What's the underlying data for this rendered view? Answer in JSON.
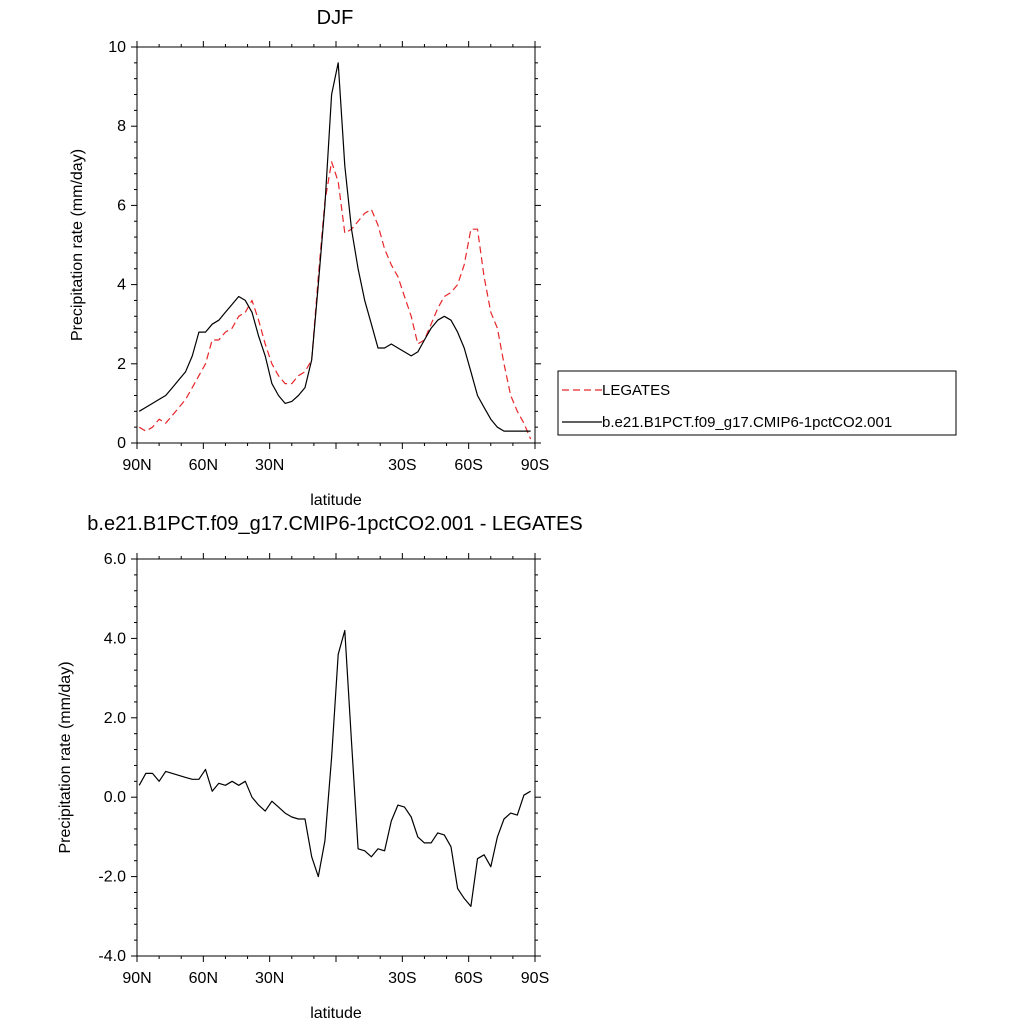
{
  "chart_data": [
    {
      "type": "line",
      "title": "DJF",
      "xlabel": "latitude",
      "ylabel": "Precipitation rate (mm/day)",
      "xlim": [
        90,
        -90
      ],
      "ylim": [
        0,
        10
      ],
      "xticks": [
        90,
        60,
        30,
        0,
        -30,
        -60,
        -90
      ],
      "xtick_labels": [
        "90N",
        "60N",
        "30N",
        "",
        "30S",
        "60S",
        "90S"
      ],
      "yticks": [
        0,
        2,
        4,
        6,
        8,
        10
      ],
      "ytick_labels": [
        "0",
        "2",
        "4",
        "6",
        "8",
        "10"
      ],
      "legend_position": "right",
      "series": [
        {
          "name": "LEGATES",
          "color": "#e8262a",
          "dash": true,
          "x": [
            89,
            86,
            83,
            80,
            77,
            74,
            71,
            68,
            65,
            62,
            59,
            56,
            53,
            50,
            47,
            44,
            41,
            38,
            35,
            32,
            29,
            26,
            23,
            20,
            17,
            14,
            11,
            8,
            5,
            2,
            -1,
            -4,
            -7,
            -10,
            -13,
            -16,
            -19,
            -22,
            -25,
            -28,
            -31,
            -34,
            -37,
            -40,
            -43,
            -46,
            -49,
            -52,
            -55,
            -58,
            -61,
            -64,
            -67,
            -70,
            -73,
            -76,
            -79,
            -82,
            -85,
            -88
          ],
          "y": [
            0.4,
            0.3,
            0.4,
            0.6,
            0.5,
            0.7,
            0.9,
            1.1,
            1.4,
            1.7,
            2.0,
            2.6,
            2.6,
            2.8,
            2.9,
            3.2,
            3.3,
            3.6,
            3.1,
            2.5,
            2.0,
            1.7,
            1.5,
            1.5,
            1.7,
            1.8,
            2.1,
            4.2,
            6.1,
            7.1,
            6.6,
            5.3,
            5.4,
            5.6,
            5.8,
            5.9,
            5.5,
            4.9,
            4.5,
            4.2,
            3.7,
            3.2,
            2.5,
            2.6,
            3.0,
            3.4,
            3.7,
            3.8,
            4.0,
            4.5,
            5.4,
            5.4,
            4.2,
            3.3,
            2.9,
            2.0,
            1.2,
            0.8,
            0.5,
            0.1
          ]
        },
        {
          "name": "b.e21.B1PCT.f09_g17.CMIP6-1pctCO2.001",
          "color": "#000000",
          "dash": false,
          "x": [
            89,
            86,
            83,
            80,
            77,
            74,
            71,
            68,
            65,
            62,
            59,
            56,
            53,
            50,
            47,
            44,
            41,
            38,
            35,
            32,
            29,
            26,
            23,
            20,
            17,
            14,
            11,
            8,
            5,
            2,
            -1,
            -4,
            -7,
            -10,
            -13,
            -16,
            -19,
            -22,
            -25,
            -28,
            -31,
            -34,
            -37,
            -40,
            -43,
            -46,
            -49,
            -52,
            -55,
            -58,
            -61,
            -64,
            -67,
            -70,
            -73,
            -76,
            -79,
            -82,
            -85,
            -88
          ],
          "y": [
            0.8,
            0.9,
            1.0,
            1.1,
            1.2,
            1.4,
            1.6,
            1.8,
            2.2,
            2.8,
            2.8,
            3.0,
            3.1,
            3.3,
            3.5,
            3.7,
            3.6,
            3.3,
            2.7,
            2.2,
            1.5,
            1.2,
            1.0,
            1.05,
            1.2,
            1.4,
            2.1,
            4.0,
            6.0,
            8.8,
            9.6,
            7.0,
            5.4,
            4.4,
            3.6,
            3.0,
            2.4,
            2.4,
            2.5,
            2.4,
            2.3,
            2.2,
            2.3,
            2.6,
            2.9,
            3.1,
            3.2,
            3.1,
            2.8,
            2.4,
            1.8,
            1.2,
            0.9,
            0.6,
            0.4,
            0.3,
            0.3,
            0.3,
            0.3,
            0.3
          ]
        }
      ]
    },
    {
      "type": "line",
      "title": "b.e21.B1PCT.f09_g17.CMIP6-1pctCO2.001 - LEGATES",
      "xlabel": "latitude",
      "ylabel": "Precipitation rate (mm/day)",
      "xlim": [
        90,
        -90
      ],
      "ylim": [
        -4,
        6
      ],
      "xticks": [
        90,
        60,
        30,
        0,
        -30,
        -60,
        -90
      ],
      "xtick_labels": [
        "90N",
        "60N",
        "30N",
        "",
        "30S",
        "60S",
        "90S"
      ],
      "yticks": [
        -4,
        -2,
        0,
        2,
        4,
        6
      ],
      "ytick_labels": [
        "-4.0",
        "-2.0",
        "0.0",
        "2.0",
        "4.0",
        "6.0"
      ],
      "series": [
        {
          "color": "#000000",
          "dash": false,
          "x": [
            89,
            86,
            83,
            80,
            77,
            74,
            71,
            68,
            65,
            62,
            59,
            56,
            53,
            50,
            47,
            44,
            41,
            38,
            35,
            32,
            29,
            26,
            23,
            20,
            17,
            14,
            11,
            8,
            5,
            2,
            -1,
            -4,
            -7,
            -10,
            -13,
            -16,
            -19,
            -22,
            -25,
            -28,
            -31,
            -34,
            -37,
            -40,
            -43,
            -46,
            -49,
            -52,
            -55,
            -58,
            -61,
            -64,
            -67,
            -70,
            -73,
            -76,
            -79,
            -82,
            -85,
            -88
          ],
          "y": [
            0.3,
            0.6,
            0.6,
            0.4,
            0.65,
            0.6,
            0.55,
            0.5,
            0.45,
            0.45,
            0.7,
            0.15,
            0.35,
            0.3,
            0.4,
            0.3,
            0.4,
            0.0,
            -0.2,
            -0.35,
            -0.1,
            -0.25,
            -0.4,
            -0.5,
            -0.55,
            -0.55,
            -1.5,
            -2.0,
            -1.1,
            1.0,
            3.6,
            4.2,
            1.4,
            -1.3,
            -1.35,
            -1.5,
            -1.3,
            -1.35,
            -0.6,
            -0.2,
            -0.25,
            -0.5,
            -1.0,
            -1.15,
            -1.15,
            -0.9,
            -0.95,
            -1.25,
            -2.3,
            -2.55,
            -2.75,
            -1.55,
            -1.45,
            -1.75,
            -1.0,
            -0.55,
            -0.4,
            -0.45,
            0.05,
            0.15
          ]
        }
      ]
    }
  ]
}
